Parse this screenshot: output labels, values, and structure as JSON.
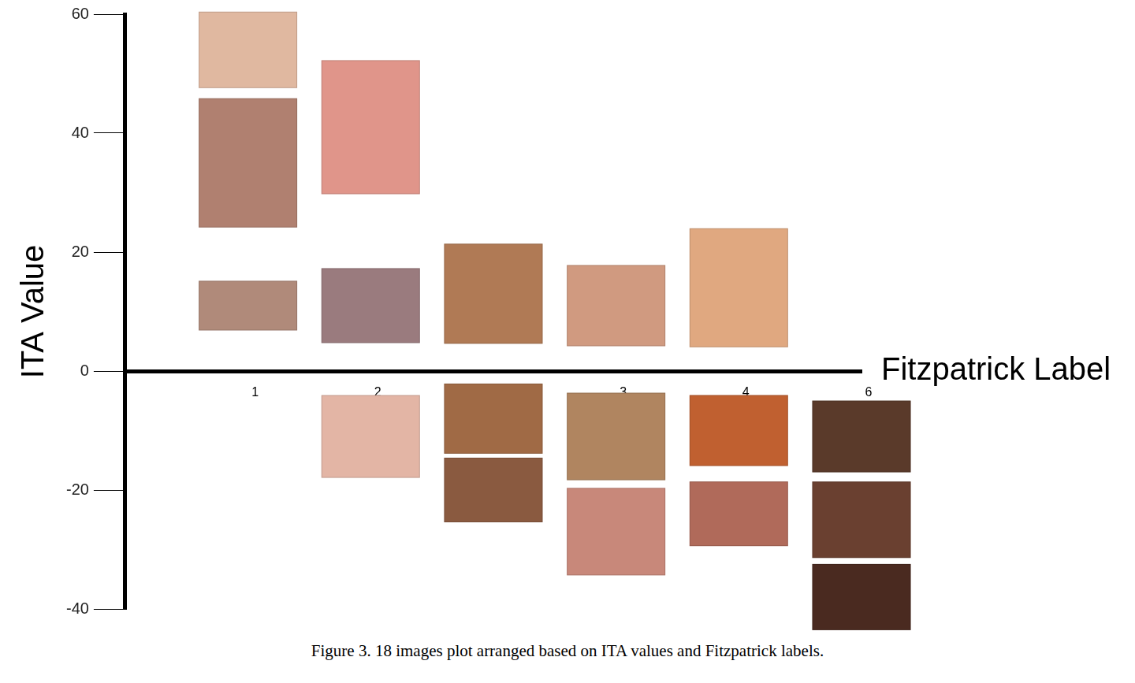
{
  "chart_data": {
    "type": "scatter",
    "title": "Figure 3. 18 images plot arranged based on ITA values and Fitzpatrick labels.",
    "x_label": "Fitzpatrick Label",
    "y_label": "ITA Value",
    "categories": [
      "1",
      "2",
      null,
      "3",
      "4",
      "6"
    ],
    "values": [
      [
        54,
        35,
        11
      ],
      [
        41,
        11,
        -11
      ],
      [
        13,
        -8,
        -20
      ],
      [
        11,
        -11,
        -27
      ],
      [
        14,
        -10,
        -24
      ],
      [
        -11,
        -25,
        -38
      ]
    ],
    "colors": [
      [
        "#e0b8a0",
        "#b08070",
        "#b08a7a"
      ],
      [
        "#e0958a",
        "#9a7b7e",
        "#e3b5a5"
      ],
      [
        "#b07a55",
        "#a06a45",
        "#8a5a40"
      ],
      [
        "#d09a80",
        "#b08560",
        "#c8887a"
      ],
      [
        "#e0a880",
        "#c06030",
        "#b06a5a"
      ],
      [
        "#5a3a2a",
        "#6a4030",
        "#4a2a20"
      ]
    ],
    "marker": "image",
    "ylim": [
      -40,
      60
    ],
    "yticks": [
      -40,
      -20,
      0,
      20,
      40,
      60
    ],
    "grid": false
  }
}
